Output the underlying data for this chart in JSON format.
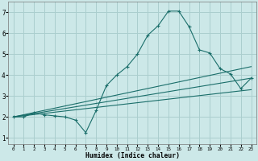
{
  "xlabel": "Humidex (Indice chaleur)",
  "bg_color": "#cce8e8",
  "grid_color": "#aacece",
  "line_color": "#1a6e6a",
  "xlim": [
    -0.5,
    23.5
  ],
  "ylim": [
    0.7,
    7.5
  ],
  "xticks": [
    0,
    1,
    2,
    3,
    4,
    5,
    6,
    7,
    8,
    9,
    10,
    11,
    12,
    13,
    14,
    15,
    16,
    17,
    18,
    19,
    20,
    21,
    22,
    23
  ],
  "yticks": [
    1,
    2,
    3,
    4,
    5,
    6,
    7
  ],
  "series": [
    {
      "x": [
        0,
        1,
        2,
        3,
        4,
        5,
        6,
        7,
        8,
        9,
        10,
        11,
        12,
        13,
        14,
        15,
        16,
        17,
        18,
        19,
        20,
        21,
        22,
        23
      ],
      "y": [
        2.0,
        2.0,
        2.2,
        2.1,
        2.05,
        2.0,
        1.85,
        1.25,
        2.3,
        3.5,
        4.0,
        4.4,
        5.0,
        5.9,
        6.35,
        7.05,
        7.05,
        6.3,
        5.2,
        5.05,
        4.3,
        4.05,
        3.35,
        3.85
      ],
      "style": "dotted"
    },
    {
      "x": [
        0,
        23
      ],
      "y": [
        2.0,
        4.4
      ],
      "style": "line"
    },
    {
      "x": [
        0,
        23
      ],
      "y": [
        2.0,
        3.85
      ],
      "style": "line"
    },
    {
      "x": [
        0,
        23
      ],
      "y": [
        2.0,
        3.3
      ],
      "style": "line"
    }
  ]
}
